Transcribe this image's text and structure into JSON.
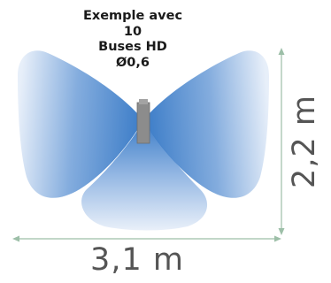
{
  "caption": {
    "line1": "Exemple avec",
    "line2": "10",
    "line3": "Buses HD",
    "line4": "Ø0,6"
  },
  "dimensions": {
    "width_label": "3,1 m",
    "height_label": "2,2 m"
  },
  "colors": {
    "spray_dark": "#2f74c4",
    "spray_light": "#e6eef9",
    "nozzle": "#8c8c8c",
    "dimension_line": "#9dbfa8",
    "dimension_text": "#555555"
  }
}
